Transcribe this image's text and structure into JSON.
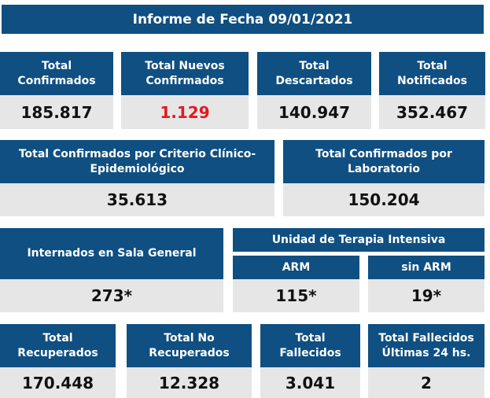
{
  "title": "Informe de Fecha 09/01/2021",
  "colors": {
    "header_bg": "#0f4f82",
    "value_bg": "#e6e6e6",
    "value_text": "#111111",
    "highlight": "#e3191f"
  },
  "row1": [
    {
      "label": "Total\nConfirmados",
      "value": "185.817"
    },
    {
      "label": "Total Nuevos\nConfirmados",
      "value": "1.129"
    },
    {
      "label": "Total\nDescartados",
      "value": "140.947"
    },
    {
      "label": "Total\nNotificados",
      "value": "352.467"
    }
  ],
  "row2": [
    {
      "label": "Total Confirmados por Criterio Clínico-\nEpidemiológico",
      "value": "35.613"
    },
    {
      "label": "Total Confirmados por\nLaboratorio",
      "value": "150.204"
    }
  ],
  "row3": {
    "sala_general": {
      "label": "Internados en Sala General",
      "value": "273*"
    },
    "uti": {
      "label": "Unidad de Terapia Intensiva",
      "arm": {
        "label": "ARM",
        "value": "115*"
      },
      "sin_arm": {
        "label": "sin ARM",
        "value": "19*"
      }
    }
  },
  "row4": [
    {
      "label": "Total\nRecuperados",
      "value": "170.448"
    },
    {
      "label": "Total No\nRecuperados",
      "value": "12.328"
    },
    {
      "label": "Total\nFallecidos",
      "value": "3.041"
    },
    {
      "label": "Total Fallecidos\nÚltimas 24 hs.",
      "value": "2"
    }
  ]
}
